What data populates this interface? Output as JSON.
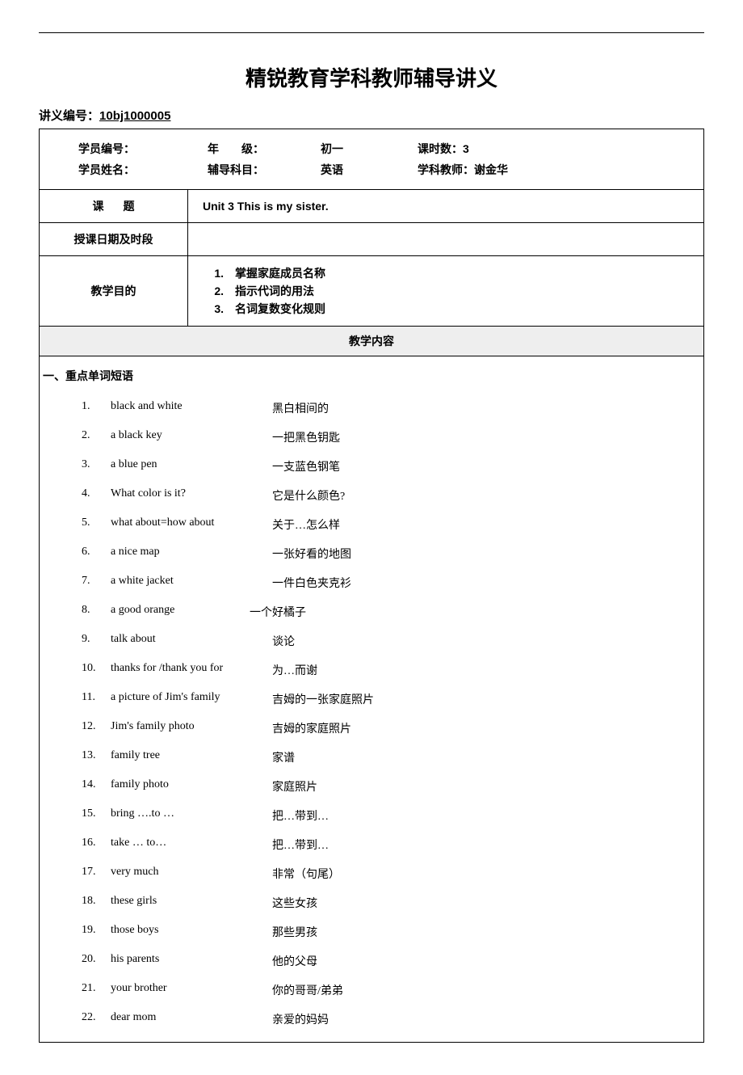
{
  "title": "精锐教育学科教师辅导讲义",
  "docNumber": {
    "label": "讲义编号：",
    "value": "10bj1000005"
  },
  "header": {
    "r1c1": "学员编号：",
    "r1c2_label": "年　　级：",
    "r1c2_value": "初一",
    "r1c3_label": "课时数：",
    "r1c3_value": "3",
    "r2c1": "学员姓名：",
    "r2c2_label": "辅导科目：",
    "r2c2_value": "英语",
    "r2c3_label": "学科教师：",
    "r2c3_value": "谢金华"
  },
  "rows": {
    "topic": {
      "label": "课题",
      "value": "Unit 3 This is my sister."
    },
    "schedule": {
      "label": "授课日期及时段",
      "value": ""
    },
    "goals": {
      "label": "教学目的",
      "items": [
        "掌握家庭成员名称",
        "指示代词的用法",
        "名词复数变化规则"
      ]
    }
  },
  "contentHeader": "教学内容",
  "sectionTitle": "一、重点单词短语",
  "vocab": [
    {
      "en": "black and white",
      "cn": "黑白相间的"
    },
    {
      "en": "a black key",
      "cn": "一把黑色钥匙"
    },
    {
      "en": "a blue pen",
      "cn": "一支蓝色钢笔"
    },
    {
      "en": "What color is it?",
      "cn": "它是什么颜色?"
    },
    {
      "en": "what about=how about",
      "cn": "关于…怎么样"
    },
    {
      "en": "a nice map",
      "cn": "一张好看的地图"
    },
    {
      "en": "a white jacket",
      "cn": "一件白色夹克衫"
    },
    {
      "en": "a good orange",
      "cn": "一个好橘子",
      "shift": true
    },
    {
      "en": "talk about",
      "cn": "谈论"
    },
    {
      "en": "thanks for /thank you for",
      "cn": "为…而谢"
    },
    {
      "en": "a picture of Jim's family",
      "cn": "吉姆的一张家庭照片"
    },
    {
      "en": "Jim's family photo",
      "cn": "吉姆的家庭照片"
    },
    {
      "en": "family tree",
      "cn": "家谱"
    },
    {
      "en": "family photo",
      "cn": "家庭照片"
    },
    {
      "en": "bring ….to …",
      "cn": "把…带到…"
    },
    {
      "en": "take … to…",
      "cn": "把…带到…"
    },
    {
      "en": "very much",
      "cn": "非常（句尾）"
    },
    {
      "en": "these girls",
      "cn": "这些女孩"
    },
    {
      "en": "those boys",
      "cn": "那些男孩"
    },
    {
      "en": "his parents",
      "cn": "他的父母"
    },
    {
      "en": "your brother",
      "cn": "你的哥哥/弟弟"
    },
    {
      "en": "dear mom",
      "cn": "亲爱的妈妈"
    }
  ]
}
